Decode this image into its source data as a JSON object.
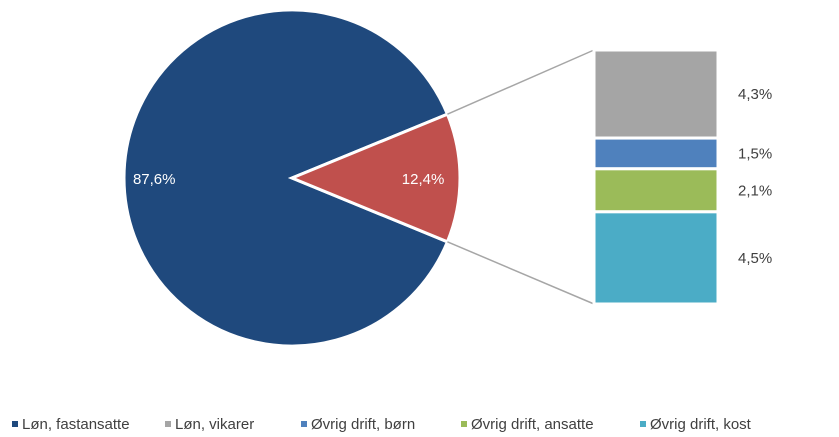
{
  "chart_data": {
    "type": "pie-of-bar",
    "pie": {
      "values": [
        87.6,
        12.4
      ],
      "value_labels": [
        "87,6%",
        "12,4%"
      ],
      "colors": [
        "#1f497d",
        "#c0504d"
      ]
    },
    "bar": {
      "values": [
        4.3,
        1.5,
        2.1,
        4.5
      ],
      "value_labels": [
        "4,3%",
        "1,5%",
        "2,1%",
        "4,5%"
      ],
      "colors": [
        "#a5a5a5",
        "#4f81bd",
        "#9bbb59",
        "#4bacc6"
      ]
    },
    "legend": {
      "names": [
        "Løn, fastansatte",
        "Løn, vikarer",
        "Øvrig drift, børn",
        "Øvrig drift, ansatte",
        "Øvrig drift, kost"
      ],
      "colors": [
        "#1f497d",
        "#a5a5a5",
        "#4f81bd",
        "#9bbb59",
        "#4bacc6"
      ]
    }
  }
}
